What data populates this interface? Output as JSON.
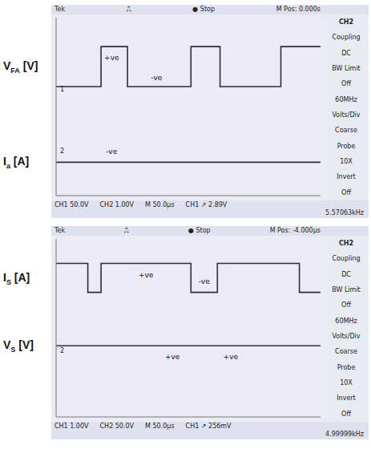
{
  "chart_data": [
    {
      "type": "line",
      "header": [
        "Tek",
        "⎍",
        "● Stop",
        "M Pos: 0.000s"
      ],
      "footer": [
        "CH1 50.0V",
        "CH2 1.00V",
        "M 50.0µs",
        "CH1 ↗ 2.89V",
        "5.57063kHz"
      ],
      "menu": [
        "CH2",
        "Coupling",
        "DC",
        "BW Limit",
        "Off",
        "60MHz",
        "Volts/Div",
        "Coarse",
        "Probe",
        "10X",
        "Invert",
        "Off"
      ],
      "xlim": [
        0,
        500
      ],
      "xticks": [
        0,
        50,
        100,
        150,
        200,
        250,
        300,
        350,
        400,
        450,
        500
      ],
      "ylim": [
        -4,
        4
      ],
      "yticks": [
        -4,
        -3,
        -2,
        -1,
        0,
        1,
        2,
        3,
        4
      ],
      "grid": true,
      "tick_labels": false,
      "series": [
        {
          "name": "V",
          "sub": "FA",
          "unit": "[V]",
          "color": "#2f2f38",
          "line_style": "step",
          "x": [
            0,
            85,
            135,
            255,
            310,
            425,
            500
          ],
          "values": [
            0.9,
            2.7,
            0.9,
            2.7,
            0.9,
            2.7,
            2.7
          ]
        },
        {
          "name": "I",
          "sub": "a",
          "unit": "[A]",
          "color": "#2f2f38",
          "line_style": "step",
          "x": [
            0,
            500
          ],
          "values": [
            -2.5,
            -2.5
          ]
        }
      ],
      "annotations": [
        {
          "text": "+ve",
          "x": 105,
          "y": 2.2
        },
        {
          "text": "-ve",
          "x": 190,
          "y": 1.3
        },
        {
          "text": "-ve",
          "x": 105,
          "y": -2.0
        }
      ],
      "channel_markers": [
        {
          "label": "1",
          "y": 0.8
        },
        {
          "label": "2",
          "y": -2.0
        }
      ]
    },
    {
      "type": "line",
      "header": [
        "Tek",
        "⎍",
        "● Stop",
        "M Pos: -4.000µs"
      ],
      "footer": [
        "CH1 1.00V",
        "CH2 50.0V",
        "M 50.0µs",
        "CH1 ↗ 256mV",
        "4.99999kHz"
      ],
      "menu": [
        "CH2",
        "Coupling",
        "DC",
        "BW Limit",
        "Off",
        "60MHz",
        "Volts/Div",
        "Coarse",
        "Probe",
        "10X",
        "Invert",
        "Off"
      ],
      "xlim": [
        0,
        500
      ],
      "xticks": [
        0,
        50,
        100,
        150,
        200,
        250,
        300,
        350,
        400,
        450,
        500
      ],
      "ylim": [
        -4,
        4
      ],
      "yticks": [
        -4,
        -3,
        -2,
        -1,
        0,
        1,
        2,
        3,
        4
      ],
      "grid": true,
      "tick_labels": false,
      "series": [
        {
          "name": "I",
          "sub": "S",
          "unit": "[A]",
          "color": "#2f2f38",
          "line_style": "step",
          "x": [
            0,
            60,
            85,
            255,
            305,
            460,
            500
          ],
          "values": [
            2.9,
            1.6,
            2.9,
            1.6,
            2.9,
            1.6,
            1.6
          ]
        },
        {
          "name": "V",
          "sub": "S",
          "unit": "[V]",
          "color": "#2f2f38",
          "line_style": "step",
          "x": [
            0,
            500
          ],
          "values": [
            -0.8,
            -0.8
          ]
        }
      ],
      "annotations": [
        {
          "text": "+ve",
          "x": 170,
          "y": 2.4
        },
        {
          "text": "-ve",
          "x": 280,
          "y": 2.1
        },
        {
          "text": "+ve",
          "x": 220,
          "y": -1.3
        },
        {
          "text": "+ve",
          "x": 330,
          "y": -1.3
        }
      ],
      "channel_markers": [
        {
          "label": "2",
          "y": -1.0
        }
      ]
    }
  ]
}
